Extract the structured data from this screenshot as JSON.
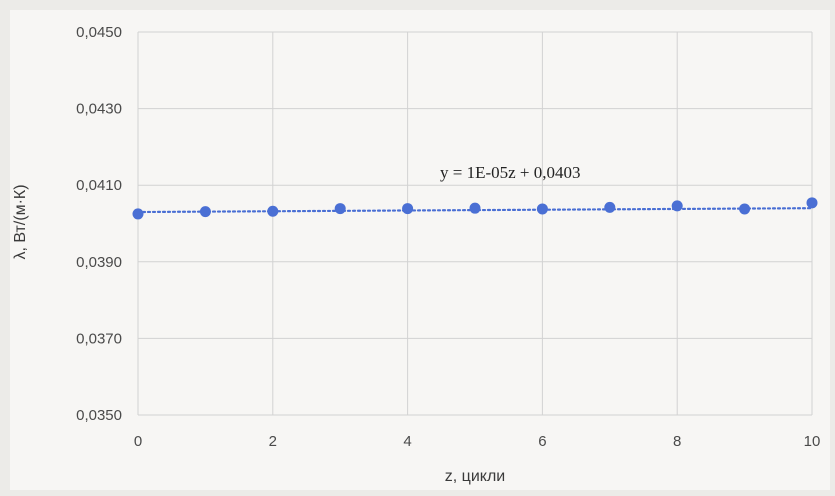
{
  "chart_data": {
    "type": "scatter",
    "title": "",
    "xlabel": "z, цикли",
    "ylabel": "λ, Вт/(м·К)",
    "xlim": [
      0,
      10
    ],
    "ylim": [
      0.035,
      0.045
    ],
    "x_ticks": [
      "0",
      "2",
      "4",
      "6",
      "8",
      "10"
    ],
    "y_ticks": [
      "0,0350",
      "0,0370",
      "0,0390",
      "0,0410",
      "0,0430",
      "0,0450"
    ],
    "grid": true,
    "legend": "none",
    "series": [
      {
        "x": [
          0,
          1,
          2,
          3,
          4,
          5,
          6,
          7,
          8,
          9,
          10
        ],
        "y": [
          0.04025,
          0.04031,
          0.04032,
          0.04039,
          0.04039,
          0.0404,
          0.04038,
          0.04042,
          0.04046,
          0.04038,
          0.04054
        ],
        "color": "#4a6fd4"
      }
    ],
    "trendline": {
      "type": "linear",
      "slope": 1e-05,
      "intercept": 0.0403,
      "equation": "y = 1E-05z + 0,0403",
      "color": "#4a6fd4",
      "style": "dotted"
    }
  }
}
